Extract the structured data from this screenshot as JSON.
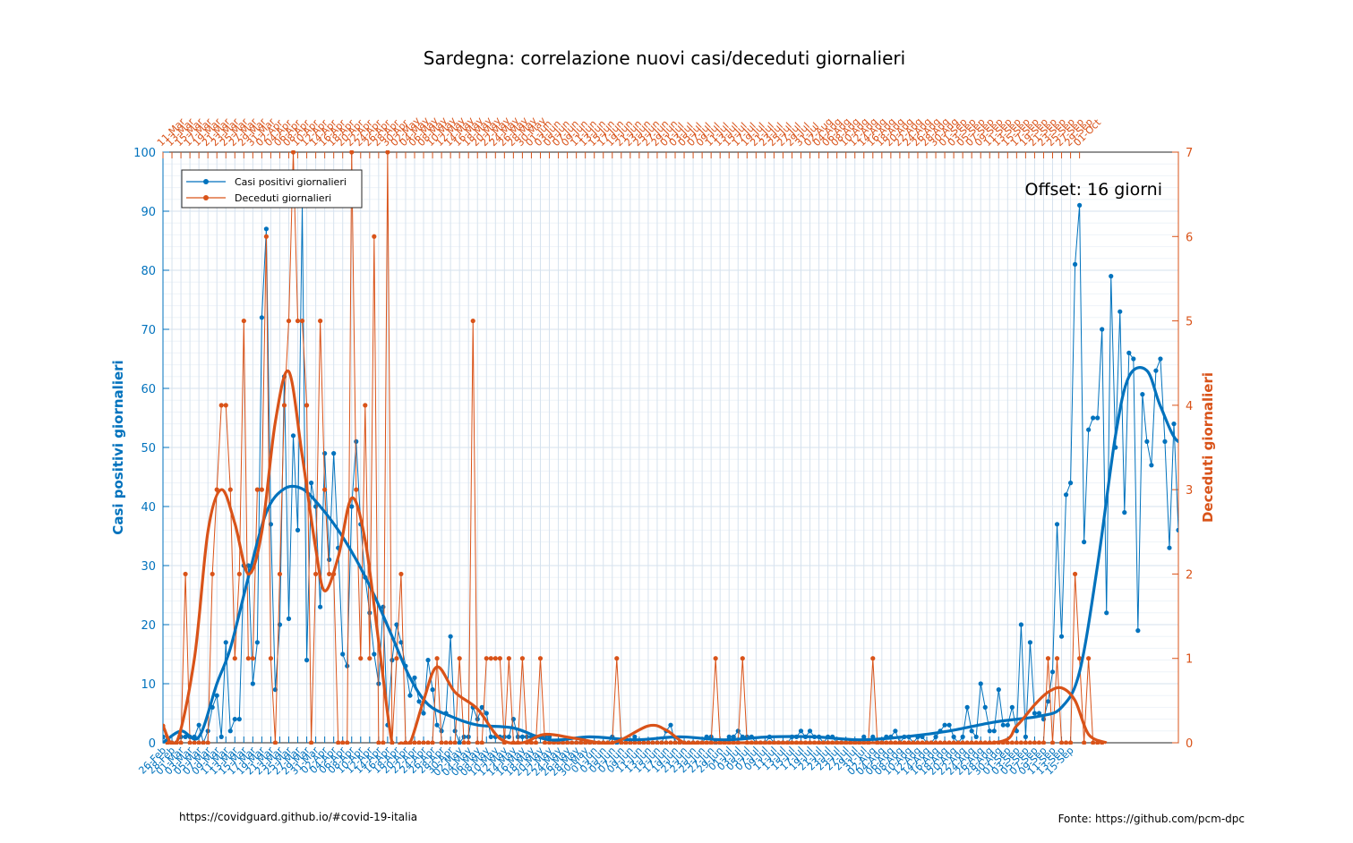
{
  "chart_data": {
    "type": "line",
    "title": "Sardegna: correlazione nuovi casi/deceduti giornalieri",
    "ylabel_left": "Casi positivi giornalieri",
    "ylabel_right": "Deceduti giornalieri",
    "ylim_left": [
      0,
      100
    ],
    "ylim_right": [
      0,
      7
    ],
    "yticks_left": [
      "0",
      "10",
      "20",
      "30",
      "40",
      "50",
      "60",
      "70",
      "80",
      "90",
      "100"
    ],
    "yticks_right": [
      "0",
      "1",
      "2",
      "3",
      "4",
      "5",
      "6",
      "7"
    ],
    "grid": true,
    "legend_position": "top-left",
    "annotation": "Offset: 16 giorni",
    "footer_left": "https://covidguard.github.io/#covid-19-italia",
    "footer_right": "Fonte: https://github.com/pcm-dpc",
    "colors": {
      "cases": "#0072bd",
      "deaths": "#d95319",
      "grid": "#d6e2ee"
    },
    "x_labels_bottom": [
      "26-Feb",
      "28-Feb",
      "01-Mar",
      "03-Mar",
      "05-Mar",
      "07-Mar",
      "09-Mar",
      "11-Mar",
      "13-Mar",
      "15-Mar",
      "17-Mar",
      "19-Mar",
      "21-Mar",
      "23-Mar",
      "25-Mar",
      "27-Mar",
      "29-Mar",
      "31-Mar",
      "02-Apr",
      "04-Apr",
      "06-Apr",
      "08-Apr",
      "10-Apr",
      "12-Apr",
      "14-Apr",
      "16-Apr",
      "18-Apr",
      "20-Apr",
      "22-Apr",
      "24-Apr",
      "26-Apr",
      "28-Apr",
      "30-Apr",
      "02-May",
      "04-May",
      "06-May",
      "08-May",
      "10-May",
      "12-May",
      "14-May",
      "16-May",
      "18-May",
      "20-May",
      "22-May",
      "24-May",
      "26-May",
      "28-May",
      "30-May",
      "01-Jun",
      "03-Jun",
      "05-Jun",
      "07-Jun",
      "09-Jun",
      "11-Jun",
      "13-Jun",
      "15-Jun",
      "17-Jun",
      "19-Jun",
      "21-Jun",
      "23-Jun",
      "25-Jun",
      "27-Jun",
      "29-Jun",
      "01-Jul",
      "03-Jul",
      "05-Jul",
      "07-Jul",
      "09-Jul",
      "11-Jul",
      "13-Jul",
      "15-Jul",
      "17-Jul",
      "19-Jul",
      "21-Jul",
      "23-Jul",
      "25-Jul",
      "27-Jul",
      "29-Jul",
      "31-Jul",
      "02-Aug",
      "04-Aug",
      "06-Aug",
      "08-Aug",
      "10-Aug",
      "12-Aug",
      "14-Aug",
      "16-Aug",
      "18-Aug",
      "20-Aug",
      "22-Aug",
      "24-Aug",
      "26-Aug",
      "28-Aug",
      "30-Aug",
      "01-Sep",
      "03-Sep",
      "05-Sep",
      "07-Sep",
      "09-Sep",
      "11-Sep",
      "13-Sep",
      "15-Sep"
    ],
    "x_labels_top": [
      "11-Mar",
      "13-Mar",
      "15-Mar",
      "17-Mar",
      "19-Mar",
      "21-Mar",
      "23-Mar",
      "25-Mar",
      "27-Mar",
      "29-Mar",
      "31-Mar",
      "02-Apr",
      "04-Apr",
      "06-Apr",
      "08-Apr",
      "10-Apr",
      "12-Apr",
      "14-Apr",
      "16-Apr",
      "18-Apr",
      "20-Apr",
      "22-Apr",
      "24-Apr",
      "26-Apr",
      "28-Apr",
      "30-Apr",
      "02-May",
      "04-May",
      "06-May",
      "08-May",
      "10-May",
      "12-May",
      "14-May",
      "16-May",
      "18-May",
      "20-May",
      "22-May",
      "24-May",
      "26-May",
      "28-May",
      "30-May",
      "01-Jun",
      "03-Jun",
      "05-Jun",
      "07-Jun",
      "09-Jun",
      "11-Jun",
      "13-Jun",
      "15-Jun",
      "17-Jun",
      "19-Jun",
      "21-Jun",
      "23-Jun",
      "25-Jun",
      "27-Jun",
      "29-Jun",
      "01-Jul",
      "03-Jul",
      "05-Jul",
      "07-Jul",
      "09-Jul",
      "11-Jul",
      "13-Jul",
      "15-Jul",
      "17-Jul",
      "19-Jul",
      "21-Jul",
      "23-Jul",
      "25-Jul",
      "27-Jul",
      "29-Jul",
      "31-Jul",
      "02-Aug",
      "04-Aug",
      "06-Aug",
      "08-Aug",
      "10-Aug",
      "12-Aug",
      "14-Aug",
      "16-Aug",
      "18-Aug",
      "20-Aug",
      "22-Aug",
      "24-Aug",
      "26-Aug",
      "28-Aug",
      "30-Aug",
      "01-Sep",
      "03-Sep",
      "05-Sep",
      "07-Sep",
      "09-Sep",
      "11-Sep",
      "13-Sep",
      "15-Sep",
      "17-Sep",
      "19-Sep",
      "21-Sep",
      "23-Sep",
      "25-Sep",
      "27-Sep",
      "29-Sep",
      "01-Oct"
    ],
    "series": [
      {
        "name": "Casi positivi giornalieri",
        "axis": "left",
        "values": [
          1,
          0,
          0,
          0,
          1,
          1,
          1,
          1,
          3,
          0,
          2,
          6,
          8,
          1,
          17,
          2,
          4,
          4,
          30,
          30,
          10,
          17,
          72,
          87,
          37,
          9,
          20,
          62,
          21,
          52,
          36,
          91,
          14,
          44,
          40,
          23,
          49,
          31,
          49,
          33,
          15,
          13,
          40,
          51,
          37,
          28,
          22,
          15,
          10,
          23,
          3,
          14,
          20,
          17,
          13,
          8,
          11,
          7,
          5,
          14,
          9,
          3,
          2,
          5,
          18,
          2,
          0,
          1,
          1,
          6,
          4,
          6,
          5,
          1,
          1,
          1,
          1,
          1,
          4,
          1,
          1,
          1,
          1,
          1,
          1,
          1,
          1,
          0,
          0,
          0,
          0,
          0,
          0,
          0,
          0,
          0,
          0,
          0,
          0,
          0,
          1,
          0,
          0,
          0,
          0,
          1,
          0,
          0,
          0,
          0,
          0,
          0,
          2,
          3,
          0,
          0,
          0,
          0,
          0,
          0,
          0,
          1,
          1,
          0,
          0,
          0,
          1,
          1,
          2,
          1,
          1,
          1,
          0,
          0,
          0,
          1,
          0,
          0,
          0,
          0,
          1,
          1,
          2,
          1,
          2,
          1,
          1,
          0,
          1,
          1,
          0,
          0,
          0,
          0,
          0,
          0,
          1,
          0,
          1,
          0,
          0,
          1,
          1,
          2,
          0,
          1,
          1,
          0,
          1,
          1,
          0,
          0,
          1,
          2,
          3,
          3,
          1,
          0,
          1,
          6,
          2,
          1,
          10,
          6,
          2,
          2,
          9,
          3,
          3,
          6,
          2,
          20,
          1,
          17,
          5,
          5,
          4,
          7,
          12,
          37,
          18,
          42,
          44,
          81,
          91,
          34,
          53,
          55,
          55,
          70,
          22,
          79,
          50,
          73,
          39,
          66,
          65,
          19,
          59,
          51,
          47,
          63,
          65,
          51,
          33,
          54,
          36
        ]
      },
      {
        "name": "Deceduti giornalieri",
        "axis": "right",
        "values": [
          0.2,
          0,
          0,
          0,
          0,
          2,
          0,
          0,
          0,
          0,
          0,
          2,
          3,
          4,
          4,
          3,
          1,
          2,
          5,
          1,
          1,
          3,
          3,
          6,
          1,
          0,
          2,
          4,
          5,
          7,
          5,
          5,
          4,
          0,
          2,
          5,
          3,
          2,
          2,
          0,
          0,
          0,
          7,
          3,
          1,
          4,
          1,
          6,
          0,
          0,
          7,
          0,
          1,
          2,
          0,
          0,
          0,
          0,
          0,
          0,
          0,
          1,
          0,
          0,
          0,
          0,
          1,
          0,
          0,
          5,
          0,
          0,
          1,
          1,
          1,
          1,
          0,
          1,
          0,
          0,
          1,
          0,
          0,
          0,
          1,
          0,
          0,
          0,
          0,
          0,
          0,
          0,
          0,
          0,
          0,
          0,
          0,
          0,
          0,
          0,
          0,
          1,
          0,
          0,
          0,
          0,
          0,
          0,
          0,
          0,
          0,
          0,
          0,
          0,
          0,
          0,
          0,
          0,
          0,
          0,
          0,
          0,
          0,
          1,
          0,
          0,
          0,
          0,
          0,
          1,
          0,
          0,
          0,
          0,
          0,
          0,
          0,
          0,
          0,
          0,
          0,
          0,
          0,
          0,
          0,
          0,
          0,
          0,
          0,
          0,
          0,
          0,
          0,
          0,
          0,
          0,
          0,
          0,
          1,
          0,
          0,
          0,
          0,
          0,
          0,
          0,
          0,
          0,
          0,
          0,
          0,
          0,
          0,
          0,
          0,
          0,
          0,
          0,
          0,
          0,
          0,
          0,
          0,
          0,
          0,
          0,
          0,
          0,
          0,
          0,
          0,
          0,
          0,
          0,
          0,
          0,
          0,
          1,
          0,
          1,
          0,
          0,
          0,
          2,
          1,
          0,
          1,
          0,
          0,
          0
        ]
      },
      {
        "name": "",
        "axis": "left",
        "style": "trend",
        "x": [
          0,
          4,
          8,
          12,
          15,
          19,
          23,
          27,
          31,
          35,
          39,
          43,
          47,
          51,
          55,
          59,
          64,
          70,
          78,
          86,
          95,
          105,
          115,
          125,
          135,
          145,
          155,
          165,
          175,
          185,
          195,
          200,
          204,
          208,
          212,
          215,
          219,
          222,
          226,
          230,
          233,
          237,
          241
        ],
        "values": [
          0,
          2,
          1,
          10,
          16,
          28,
          39,
          43,
          43,
          40,
          36,
          31,
          25,
          18,
          11,
          6.5,
          4.5,
          3,
          2.5,
          0.5,
          1,
          0.5,
          1,
          0.5,
          1,
          1,
          0.5,
          1,
          2,
          3.5,
          4.5,
          6,
          12,
          30,
          52,
          62,
          63,
          57,
          51,
          54,
          54,
          48,
          37
        ]
      },
      {
        "name": "",
        "axis": "right",
        "style": "trend",
        "x": [
          0,
          3,
          7,
          10,
          13,
          16,
          19,
          22,
          25,
          28,
          31,
          34,
          36,
          39,
          42,
          45,
          48,
          51,
          53,
          55,
          58,
          61,
          65,
          70,
          75,
          80,
          85,
          92,
          100,
          108,
          112,
          116,
          120,
          130,
          145,
          160,
          185,
          190,
          194,
          197,
          200,
          203,
          206,
          210
        ],
        "values": [
          0.2,
          0,
          1,
          2.5,
          3,
          2.6,
          2,
          2.5,
          3.8,
          4.4,
          3.4,
          2.3,
          1.8,
          2.2,
          2.9,
          2.4,
          1.2,
          0,
          0,
          0,
          0.5,
          0.9,
          0.6,
          0.4,
          0.05,
          0,
          0.1,
          0.05,
          0,
          0.2,
          0.15,
          0,
          0,
          0,
          0,
          0,
          0,
          0.2,
          0.45,
          0.6,
          0.65,
          0.5,
          0.1,
          0
        ]
      }
    ]
  }
}
